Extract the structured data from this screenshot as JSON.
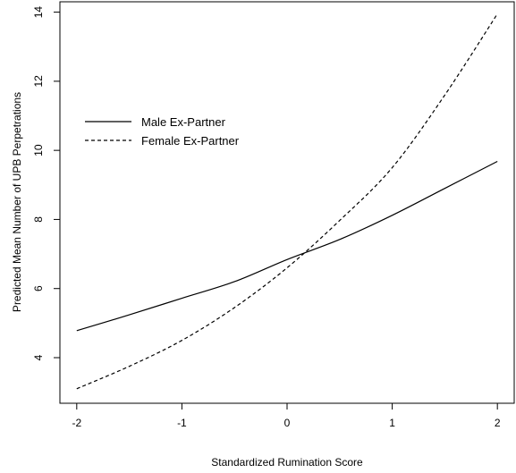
{
  "chart_data": {
    "type": "line",
    "xlabel": "Standardized Rumination Score",
    "ylabel": "Predicted Mean Number of UPB Perpetrations",
    "xlim": [
      -2.16,
      2.16
    ],
    "ylim": [
      2.68,
      14.3
    ],
    "x_ticks": [
      -2,
      -1,
      0,
      1,
      2
    ],
    "y_ticks": [
      4,
      6,
      8,
      10,
      12,
      14
    ],
    "x_tick_labels": [
      "-2",
      "-1",
      "0",
      "1",
      "2"
    ],
    "y_tick_labels": [
      "4",
      "6",
      "8",
      "10",
      "12",
      "14"
    ],
    "grid": false,
    "legend": "upper-left inside plot area",
    "series": [
      {
        "name": "Male Ex-Partner",
        "line_style": "solid",
        "color": "#000000",
        "x": [
          -2,
          -1.5,
          -1,
          -0.5,
          0,
          0.5,
          1,
          1.5,
          2
        ],
        "y": [
          4.78,
          5.24,
          5.72,
          6.2,
          6.84,
          7.42,
          8.12,
          8.9,
          9.68
        ]
      },
      {
        "name": "Female Ex-Partner",
        "line_style": "dashed",
        "color": "#000000",
        "x": [
          -2,
          -1.5,
          -1,
          -0.5,
          0,
          0.5,
          1,
          1.5,
          2
        ],
        "y": [
          3.1,
          3.75,
          4.5,
          5.45,
          6.6,
          7.97,
          9.5,
          11.6,
          13.95
        ]
      }
    ]
  }
}
